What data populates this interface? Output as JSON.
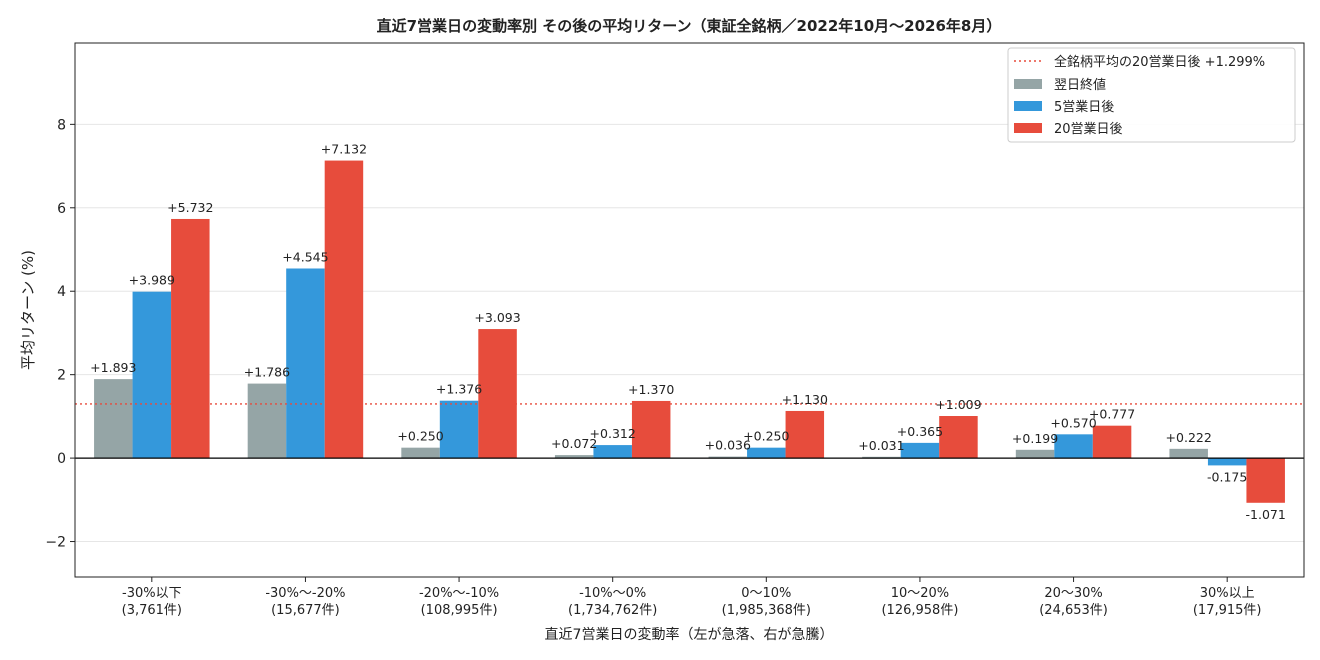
{
  "chart_data": {
    "type": "bar",
    "title": "直近7営業日の変動率別 その後の平均リターン（東証全銘柄／2022年10月～2026年8月）",
    "xlabel": "直近7営業日の変動率（左が急落、右が急騰）",
    "ylabel": "平均リターン (%)",
    "ylim": [
      -2.85,
      9.95
    ],
    "yticks": [
      -2,
      0,
      2,
      4,
      6,
      8
    ],
    "ytick_labels": [
      "−2",
      "0",
      "2",
      "4",
      "6",
      "8"
    ],
    "grid": "horizontal",
    "legend_position": "top-right",
    "categories": [
      {
        "label": "-30%以下",
        "count": "(3,761件)"
      },
      {
        "label": "-30%～-20%",
        "count": "(15,677件)"
      },
      {
        "label": "-20%～-10%",
        "count": "(108,995件)"
      },
      {
        "label": "-10%～0%",
        "count": "(1,734,762件)"
      },
      {
        "label": "0～10%",
        "count": "(1,985,368件)"
      },
      {
        "label": "10～20%",
        "count": "(126,958件)"
      },
      {
        "label": "20～30%",
        "count": "(24,653件)"
      },
      {
        "label": "30%以上",
        "count": "(17,915件)"
      }
    ],
    "series": [
      {
        "name": "翌日終値",
        "color": "#95a5a6",
        "values": [
          1.893,
          1.786,
          0.25,
          0.072,
          0.036,
          0.031,
          0.199,
          0.222
        ],
        "labels": [
          "+1.893",
          "+1.786",
          "+0.250",
          "+0.072",
          "+0.036",
          "+0.031",
          "+0.199",
          "+0.222"
        ]
      },
      {
        "name": "5営業日後",
        "color": "#3498db",
        "values": [
          3.989,
          4.545,
          1.376,
          0.312,
          0.25,
          0.365,
          0.57,
          -0.175
        ],
        "labels": [
          "+3.989",
          "+4.545",
          "+1.376",
          "+0.312",
          "+0.250",
          "+0.365",
          "+0.570",
          "-0.175"
        ]
      },
      {
        "name": "20営業日後",
        "color": "#e74c3c",
        "values": [
          5.732,
          7.132,
          3.093,
          1.37,
          1.13,
          1.009,
          0.777,
          -1.071
        ],
        "labels": [
          "+5.732",
          "+7.132",
          "+3.093",
          "+1.370",
          "+1.130",
          "+1.009",
          "+0.777",
          "-1.071"
        ]
      }
    ],
    "reference_line": {
      "name": "全銘柄平均の20営業日後 +1.299%",
      "value": 1.299,
      "color": "#e74c3c",
      "style": "dotted"
    }
  }
}
